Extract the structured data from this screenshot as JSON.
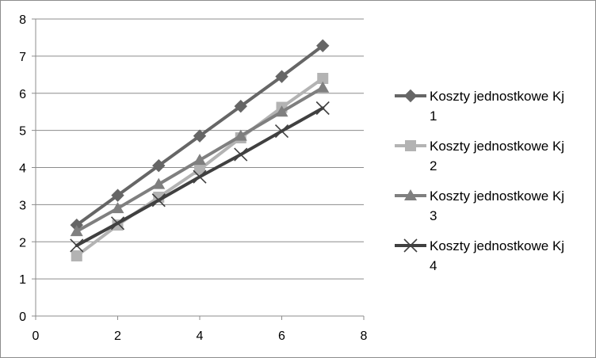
{
  "chart_data": {
    "type": "line",
    "title": "",
    "xlabel": "",
    "ylabel": "",
    "xlim": [
      0,
      8
    ],
    "ylim": [
      0,
      8
    ],
    "x_ticks": [
      0,
      2,
      4,
      6,
      8
    ],
    "y_ticks": [
      0,
      1,
      2,
      3,
      4,
      5,
      6,
      7,
      8
    ],
    "grid": "horizontal",
    "legend_position": "right",
    "x": [
      1,
      2,
      3,
      4,
      5,
      6,
      7
    ],
    "series": [
      {
        "name": "Koszty jednostkowe Kj 1",
        "legend_lines": [
          "Koszty jednostkowe Kj",
          "1"
        ],
        "color": "#666666",
        "marker": "diamond",
        "values": [
          2.45,
          3.25,
          4.05,
          4.85,
          5.65,
          6.45,
          7.28
        ]
      },
      {
        "name": "Koszty jednostkowe Kj 2",
        "legend_lines": [
          "Koszty jednostkowe Kj",
          "2"
        ],
        "color": "#b3b3b3",
        "marker": "square",
        "values": [
          1.62,
          2.45,
          3.2,
          3.95,
          4.8,
          5.62,
          6.4
        ]
      },
      {
        "name": "Koszty jednostkowe Kj 3",
        "legend_lines": [
          "Koszty jednostkowe Kj",
          "3"
        ],
        "color": "#7f7f7f",
        "marker": "triangle",
        "values": [
          2.28,
          2.9,
          3.55,
          4.2,
          4.85,
          5.5,
          6.15
        ]
      },
      {
        "name": "Koszty jednostkowe Kj 4",
        "legend_lines": [
          "Koszty jednostkowe Kj",
          "4"
        ],
        "color": "#404040",
        "marker": "x",
        "values": [
          1.9,
          2.5,
          3.12,
          3.75,
          4.35,
          4.98,
          5.6
        ]
      }
    ]
  }
}
